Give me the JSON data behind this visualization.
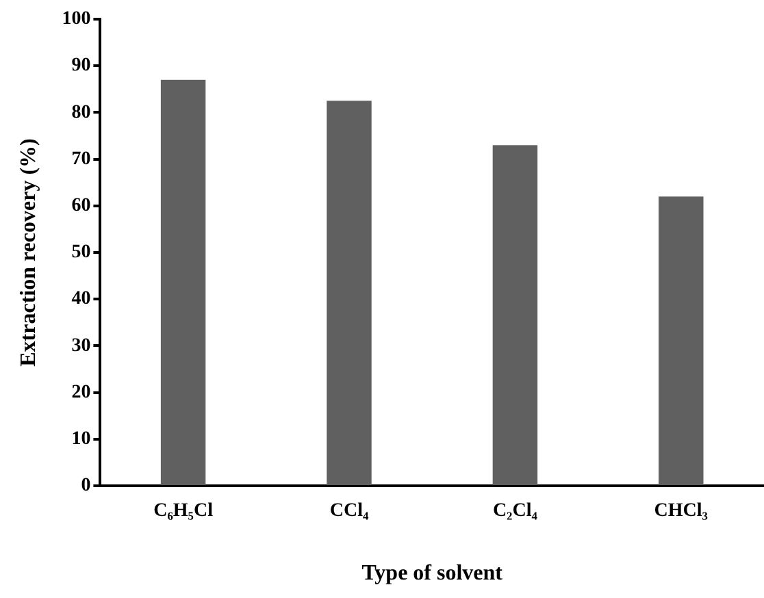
{
  "chart_data": {
    "type": "bar",
    "xlabel": "Type of solvent",
    "ylabel": "Extraction recovery (%)",
    "categories": [
      "C₆H₅Cl",
      "CCl₄",
      "C₂Cl₄",
      "CHCl₃"
    ],
    "values": [
      87,
      82.5,
      73,
      62
    ],
    "color": "#606060",
    "ylim": [
      0,
      100
    ],
    "yticks": [
      0,
      10,
      20,
      30,
      40,
      50,
      60,
      70,
      80,
      90,
      100
    ],
    "grid": false,
    "legend": false
  }
}
